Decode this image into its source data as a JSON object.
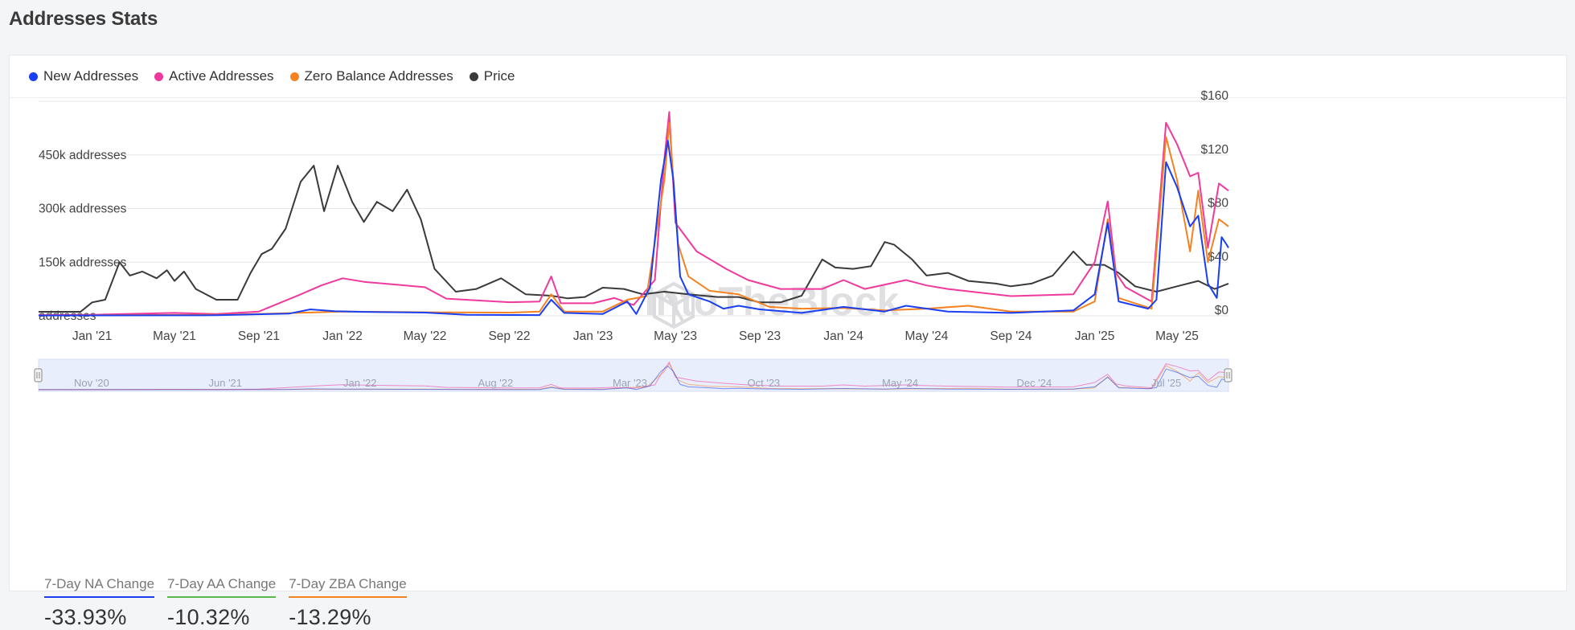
{
  "page": {
    "title": "Addresses Stats"
  },
  "legend": [
    {
      "label": "New Addresses",
      "color": "#1a3ff0"
    },
    {
      "label": "Active Addresses",
      "color": "#f0399c"
    },
    {
      "label": "Zero Balance Addresses",
      "color": "#f58220"
    },
    {
      "label": "Price",
      "color": "#3a3a3a"
    }
  ],
  "watermark": "IntoTheBlock",
  "stats": [
    {
      "label": "7-Day NA Change",
      "value": "-33.93%",
      "color": "#1a3ff0"
    },
    {
      "label": "7-Day AA Change",
      "value": "-10.32%",
      "color": "#59b84c"
    },
    {
      "label": "7-Day ZBA Change",
      "value": "-13.29%",
      "color": "#f58220"
    }
  ],
  "navigator": {
    "labels": [
      "Nov '20",
      "Jun '21",
      "Jan '22",
      "Aug '22",
      "Mar '23",
      "Oct '23",
      "May '24",
      "Dec '24",
      "Jul '25"
    ]
  },
  "chart_data": {
    "type": "line",
    "x_range": [
      "2020-10-15",
      "2025-07-15"
    ],
    "x_tick_labels": [
      "Jan '21",
      "May '21",
      "Sep '21",
      "Jan '22",
      "May '22",
      "Sep '22",
      "Jan '23",
      "May '23",
      "Sep '23",
      "Jan '24",
      "May '24",
      "Sep '24",
      "Jan '25",
      "May '25"
    ],
    "y_left": {
      "ticks": [
        0,
        150000,
        300000,
        450000
      ],
      "tick_labels": [
        "addresses",
        "150k addresses",
        "300k addresses",
        "450k addresses"
      ],
      "ylim": [
        0,
        600000
      ]
    },
    "y_right": {
      "ticks": [
        0,
        40,
        80,
        120,
        160
      ],
      "tick_labels": [
        "$0",
        "$40",
        "$80",
        "$120",
        "$160"
      ],
      "ylim": [
        0,
        160
      ]
    },
    "grid": true,
    "series": [
      {
        "name": "New Addresses",
        "axis": "left",
        "color": "#1a3ff0",
        "points": [
          [
            "2020-10-15",
            1000
          ],
          [
            "2021-07-01",
            1500
          ],
          [
            "2021-10-15",
            6000
          ],
          [
            "2021-11-15",
            18000
          ],
          [
            "2021-12-20",
            13000
          ],
          [
            "2022-02-01",
            11000
          ],
          [
            "2022-05-01",
            9000
          ],
          [
            "2022-07-01",
            3000
          ],
          [
            "2022-10-15",
            2000
          ],
          [
            "2022-11-01",
            45000
          ],
          [
            "2022-11-20",
            8000
          ],
          [
            "2023-01-15",
            5000
          ],
          [
            "2023-02-20",
            40000
          ],
          [
            "2023-03-05",
            5000
          ],
          [
            "2023-03-25",
            80000
          ],
          [
            "2023-04-10",
            380000
          ],
          [
            "2023-04-20",
            490000
          ],
          [
            "2023-04-28",
            380000
          ],
          [
            "2023-05-08",
            110000
          ],
          [
            "2023-05-20",
            60000
          ],
          [
            "2023-06-20",
            40000
          ],
          [
            "2023-07-10",
            20000
          ],
          [
            "2023-08-01",
            28000
          ],
          [
            "2023-09-01",
            18000
          ],
          [
            "2023-11-01",
            8000
          ],
          [
            "2024-01-01",
            25000
          ],
          [
            "2024-03-01",
            12000
          ],
          [
            "2024-04-01",
            28000
          ],
          [
            "2024-06-01",
            12000
          ],
          [
            "2024-09-01",
            8000
          ],
          [
            "2024-12-01",
            15000
          ],
          [
            "2025-01-01",
            60000
          ],
          [
            "2025-01-20",
            260000
          ],
          [
            "2025-02-05",
            40000
          ],
          [
            "2025-03-20",
            20000
          ],
          [
            "2025-04-01",
            45000
          ],
          [
            "2025-04-15",
            430000
          ],
          [
            "2025-05-01",
            360000
          ],
          [
            "2025-05-20",
            250000
          ],
          [
            "2025-06-01",
            280000
          ],
          [
            "2025-06-15",
            90000
          ],
          [
            "2025-06-28",
            50000
          ],
          [
            "2025-07-05",
            220000
          ],
          [
            "2025-07-12",
            200000
          ],
          [
            "2025-07-15",
            190000
          ]
        ]
      },
      {
        "name": "Active Addresses",
        "axis": "left",
        "color": "#f0399c",
        "points": [
          [
            "2020-10-15",
            2000
          ],
          [
            "2021-01-01",
            3000
          ],
          [
            "2021-05-01",
            8000
          ],
          [
            "2021-07-01",
            5000
          ],
          [
            "2021-09-01",
            12000
          ],
          [
            "2021-11-01",
            60000
          ],
          [
            "2021-12-01",
            85000
          ],
          [
            "2022-01-01",
            105000
          ],
          [
            "2022-02-01",
            95000
          ],
          [
            "2022-05-01",
            80000
          ],
          [
            "2022-06-01",
            48000
          ],
          [
            "2022-09-01",
            38000
          ],
          [
            "2022-10-15",
            40000
          ],
          [
            "2022-11-01",
            110000
          ],
          [
            "2022-11-15",
            35000
          ],
          [
            "2023-01-01",
            35000
          ],
          [
            "2023-02-01",
            50000
          ],
          [
            "2023-03-01",
            30000
          ],
          [
            "2023-04-01",
            100000
          ],
          [
            "2023-04-15",
            440000
          ],
          [
            "2023-04-22",
            570000
          ],
          [
            "2023-05-01",
            260000
          ],
          [
            "2023-06-01",
            180000
          ],
          [
            "2023-07-15",
            130000
          ],
          [
            "2023-08-15",
            100000
          ],
          [
            "2023-10-01",
            75000
          ],
          [
            "2023-12-01",
            75000
          ],
          [
            "2024-01-01",
            100000
          ],
          [
            "2024-02-01",
            75000
          ],
          [
            "2024-04-01",
            100000
          ],
          [
            "2024-05-01",
            85000
          ],
          [
            "2024-06-01",
            75000
          ],
          [
            "2024-09-01",
            55000
          ],
          [
            "2024-12-01",
            60000
          ],
          [
            "2025-01-01",
            150000
          ],
          [
            "2025-01-20",
            320000
          ],
          [
            "2025-02-01",
            120000
          ],
          [
            "2025-02-15",
            80000
          ],
          [
            "2025-03-25",
            40000
          ],
          [
            "2025-04-15",
            540000
          ],
          [
            "2025-05-01",
            480000
          ],
          [
            "2025-05-20",
            390000
          ],
          [
            "2025-06-01",
            400000
          ],
          [
            "2025-06-15",
            190000
          ],
          [
            "2025-07-01",
            370000
          ],
          [
            "2025-07-15",
            350000
          ]
        ]
      },
      {
        "name": "Zero Balance Addresses",
        "axis": "left",
        "color": "#f58220",
        "points": [
          [
            "2020-10-15",
            1000
          ],
          [
            "2021-07-01",
            3000
          ],
          [
            "2021-09-01",
            5000
          ],
          [
            "2022-01-01",
            12000
          ],
          [
            "2022-05-01",
            10000
          ],
          [
            "2022-09-01",
            9000
          ],
          [
            "2022-10-15",
            12000
          ],
          [
            "2022-11-01",
            60000
          ],
          [
            "2022-11-20",
            12000
          ],
          [
            "2023-01-15",
            12000
          ],
          [
            "2023-02-20",
            45000
          ],
          [
            "2023-03-20",
            55000
          ],
          [
            "2023-04-15",
            380000
          ],
          [
            "2023-04-22",
            540000
          ],
          [
            "2023-05-05",
            200000
          ],
          [
            "2023-05-20",
            110000
          ],
          [
            "2023-06-20",
            70000
          ],
          [
            "2023-08-01",
            60000
          ],
          [
            "2023-09-15",
            25000
          ],
          [
            "2023-11-01",
            20000
          ],
          [
            "2024-01-01",
            22000
          ],
          [
            "2024-03-01",
            15000
          ],
          [
            "2024-05-01",
            20000
          ],
          [
            "2024-07-01",
            28000
          ],
          [
            "2024-09-01",
            12000
          ],
          [
            "2024-12-01",
            12000
          ],
          [
            "2025-01-01",
            40000
          ],
          [
            "2025-01-20",
            270000
          ],
          [
            "2025-02-05",
            50000
          ],
          [
            "2025-03-25",
            20000
          ],
          [
            "2025-04-15",
            500000
          ],
          [
            "2025-05-01",
            380000
          ],
          [
            "2025-05-20",
            180000
          ],
          [
            "2025-06-01",
            350000
          ],
          [
            "2025-06-15",
            150000
          ],
          [
            "2025-07-01",
            270000
          ],
          [
            "2025-07-15",
            250000
          ]
        ]
      },
      {
        "name": "Price",
        "axis": "right",
        "color": "#3a3a3a",
        "points": [
          [
            "2020-10-15",
            3
          ],
          [
            "2020-12-15",
            3
          ],
          [
            "2021-01-01",
            10
          ],
          [
            "2021-01-20",
            12
          ],
          [
            "2021-02-10",
            40
          ],
          [
            "2021-02-25",
            30
          ],
          [
            "2021-03-15",
            33
          ],
          [
            "2021-04-05",
            28
          ],
          [
            "2021-04-20",
            34
          ],
          [
            "2021-05-01",
            26
          ],
          [
            "2021-05-15",
            33
          ],
          [
            "2021-06-01",
            20
          ],
          [
            "2021-07-01",
            12
          ],
          [
            "2021-08-01",
            12
          ],
          [
            "2021-08-20",
            32
          ],
          [
            "2021-09-05",
            46
          ],
          [
            "2021-09-20",
            50
          ],
          [
            "2021-10-10",
            65
          ],
          [
            "2021-11-01",
            100
          ],
          [
            "2021-11-20",
            112
          ],
          [
            "2021-12-05",
            78
          ],
          [
            "2021-12-25",
            112
          ],
          [
            "2022-01-15",
            85
          ],
          [
            "2022-02-01",
            70
          ],
          [
            "2022-02-20",
            85
          ],
          [
            "2022-03-15",
            78
          ],
          [
            "2022-04-05",
            94
          ],
          [
            "2022-04-25",
            72
          ],
          [
            "2022-05-15",
            35
          ],
          [
            "2022-06-15",
            18
          ],
          [
            "2022-07-15",
            20
          ],
          [
            "2022-08-20",
            28
          ],
          [
            "2022-09-25",
            16
          ],
          [
            "2022-11-01",
            15
          ],
          [
            "2022-11-25",
            13
          ],
          [
            "2022-12-20",
            14
          ],
          [
            "2023-01-15",
            21
          ],
          [
            "2023-02-15",
            20
          ],
          [
            "2023-03-15",
            16
          ],
          [
            "2023-04-15",
            18
          ],
          [
            "2023-05-20",
            16
          ],
          [
            "2023-07-01",
            14
          ],
          [
            "2023-08-01",
            14
          ],
          [
            "2023-09-01",
            10
          ],
          [
            "2023-10-01",
            10
          ],
          [
            "2023-11-01",
            15
          ],
          [
            "2023-12-01",
            42
          ],
          [
            "2023-12-20",
            36
          ],
          [
            "2024-01-15",
            35
          ],
          [
            "2024-02-10",
            37
          ],
          [
            "2024-03-01",
            55
          ],
          [
            "2024-03-15",
            53
          ],
          [
            "2024-04-10",
            42
          ],
          [
            "2024-05-01",
            30
          ],
          [
            "2024-06-01",
            32
          ],
          [
            "2024-07-01",
            26
          ],
          [
            "2024-08-10",
            24
          ],
          [
            "2024-09-01",
            22
          ],
          [
            "2024-10-01",
            24
          ],
          [
            "2024-11-01",
            30
          ],
          [
            "2024-12-01",
            48
          ],
          [
            "2024-12-20",
            38
          ],
          [
            "2025-01-15",
            38
          ],
          [
            "2025-02-05",
            32
          ],
          [
            "2025-03-01",
            22
          ],
          [
            "2025-04-01",
            18
          ],
          [
            "2025-05-01",
            22
          ],
          [
            "2025-06-01",
            26
          ],
          [
            "2025-06-25",
            20
          ],
          [
            "2025-07-15",
            24
          ]
        ]
      }
    ]
  }
}
